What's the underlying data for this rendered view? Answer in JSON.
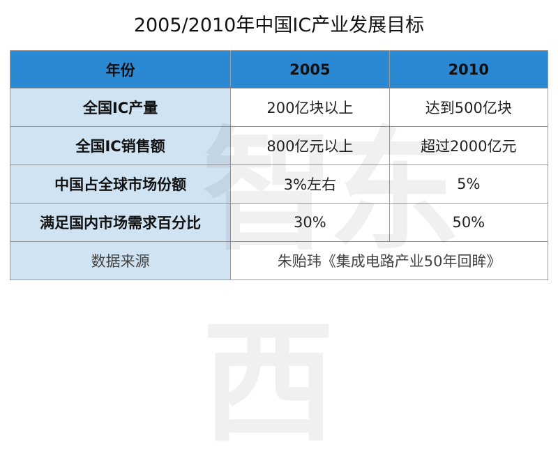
{
  "title": "2005/2010年中国IC产业发展目标",
  "header": {
    "label": "年份",
    "col1": "2005",
    "col2": "2010"
  },
  "rows": [
    {
      "label": "全国IC产量",
      "v2005": "200亿块以上",
      "v2010": "达到500亿块"
    },
    {
      "label": "全国IC销售额",
      "v2005": "800亿元以上",
      "v2010": "超过2000亿元"
    },
    {
      "label": "中国占全球市场份额",
      "v2005": "3%左右",
      "v2010": "5%"
    },
    {
      "label": "满足国内市场需求百分比",
      "v2005": "30%",
      "v2010": "50%"
    }
  ],
  "source": {
    "label": "数据来源",
    "value": "朱贻玮《集成电路产业50年回眸》"
  },
  "watermark": "智东西"
}
